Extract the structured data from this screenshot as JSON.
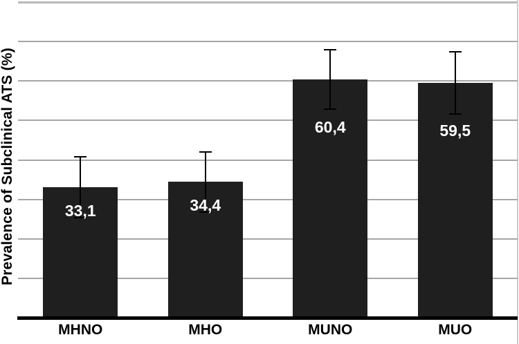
{
  "chart_data": {
    "type": "bar",
    "title": "",
    "xlabel": "",
    "ylabel": "Prevalence of Subclinical ATS (%)",
    "categories": [
      "MHNO",
      "MHO",
      "MUNO",
      "MUO"
    ],
    "values": [
      33.1,
      34.4,
      60.4,
      59.5
    ],
    "value_labels": [
      "33,1",
      "34,4",
      "60,4",
      "59,5"
    ],
    "decimal_separator": ",",
    "errors_plus": [
      7.7,
      7.6,
      7.5,
      7.9
    ],
    "errors_minus": [
      7.7,
      7.6,
      7.5,
      7.9
    ],
    "ylim": [
      0,
      80
    ],
    "gridline_step": 10,
    "grid": "horizontal",
    "y_tick_labels_shown": false,
    "legend_position": "none",
    "bar_color": "#1f1f1f",
    "error_bar_color": "#000000",
    "gridline_color": "#a6a6a6",
    "axis_line_color": "#000000",
    "value_label_color": "#ffffff",
    "category_label_color": "#000000",
    "background_color": "#ffffff"
  }
}
